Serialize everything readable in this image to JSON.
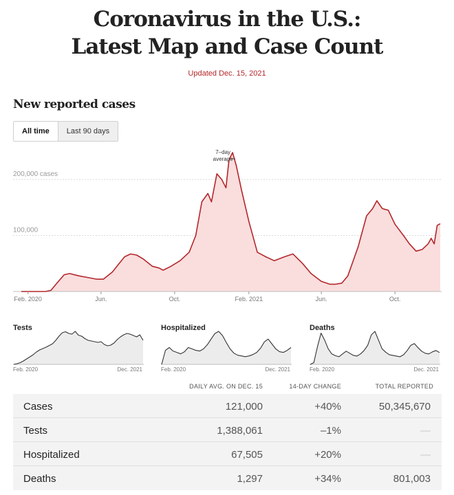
{
  "header": {
    "title_line1": "Coronavirus in the U.S.:",
    "title_line2": "Latest Map and Case Count",
    "updated": "Updated Dec. 15, 2021"
  },
  "section": {
    "title": "New reported cases"
  },
  "toggle": {
    "all_time": "All time",
    "last_90": "Last 90 days",
    "active": "all_time"
  },
  "colors": {
    "accent": "#b3262b",
    "area_fill": "#f9dedd",
    "line": "#b3262b",
    "small_fill": "#ececec",
    "small_line": "#333333"
  },
  "chart_data": [
    {
      "type": "area",
      "title": "New reported cases",
      "series_label": "7-day average",
      "ytick_labels": [
        "200,000 cases",
        "100,000"
      ],
      "yticks": [
        200000,
        100000
      ],
      "ylim": [
        0,
        260000
      ],
      "xtick_labels": [
        "Feb. 2020",
        "Jun.",
        "Oct.",
        "Feb. 2021",
        "Jun.",
        "Oct."
      ],
      "xticks": [
        "2020-02-01",
        "2020-06-01",
        "2020-10-01",
        "2021-02-01",
        "2021-06-01",
        "2021-10-01"
      ],
      "x_range": [
        "2020-01-21",
        "2021-12-15"
      ],
      "grid": true,
      "annotation": "7–day average",
      "x": [
        "2020-01-21",
        "2020-03-01",
        "2020-03-10",
        "2020-03-20",
        "2020-04-01",
        "2020-04-10",
        "2020-04-25",
        "2020-05-10",
        "2020-05-25",
        "2020-06-05",
        "2020-06-20",
        "2020-07-01",
        "2020-07-10",
        "2020-07-20",
        "2020-07-30",
        "2020-08-10",
        "2020-08-25",
        "2020-09-05",
        "2020-09-12",
        "2020-09-25",
        "2020-10-10",
        "2020-10-25",
        "2020-11-05",
        "2020-11-15",
        "2020-11-25",
        "2020-12-01",
        "2020-12-10",
        "2020-12-18",
        "2020-12-25",
        "2020-12-30",
        "2021-01-05",
        "2021-01-11",
        "2021-01-20",
        "2021-02-01",
        "2021-02-15",
        "2021-03-01",
        "2021-03-15",
        "2021-04-01",
        "2021-04-15",
        "2021-05-01",
        "2021-05-15",
        "2021-06-01",
        "2021-06-15",
        "2021-06-25",
        "2021-07-05",
        "2021-07-15",
        "2021-08-01",
        "2021-08-15",
        "2021-08-25",
        "2021-09-01",
        "2021-09-10",
        "2021-09-20",
        "2021-10-01",
        "2021-10-15",
        "2021-10-25",
        "2021-11-05",
        "2021-11-15",
        "2021-11-25",
        "2021-11-30",
        "2021-12-05",
        "2021-12-10",
        "2021-12-15"
      ],
      "values": [
        0,
        0,
        2000,
        15000,
        30000,
        32000,
        28000,
        25000,
        22000,
        22000,
        35000,
        50000,
        62000,
        67000,
        65000,
        58000,
        45000,
        42000,
        38000,
        45000,
        55000,
        70000,
        100000,
        160000,
        175000,
        160000,
        210000,
        200000,
        185000,
        235000,
        248000,
        225000,
        180000,
        125000,
        70000,
        62000,
        55000,
        62000,
        67000,
        50000,
        32000,
        18000,
        13000,
        13000,
        15000,
        28000,
        80000,
        135000,
        148000,
        162000,
        148000,
        145000,
        120000,
        100000,
        85000,
        72000,
        75000,
        85000,
        95000,
        85000,
        118000,
        121000
      ]
    },
    {
      "type": "area",
      "title": "Tests",
      "xtick_labels": [
        "Feb. 2020",
        "Dec. 2021"
      ],
      "values": [
        0,
        2,
        5,
        10,
        16,
        22,
        28,
        36,
        42,
        46,
        50,
        55,
        60,
        70,
        82,
        92,
        95,
        90,
        88,
        96,
        85,
        82,
        75,
        70,
        68,
        66,
        64,
        66,
        58,
        54,
        56,
        62,
        72,
        80,
        86,
        90,
        88,
        84,
        80,
        86,
        70
      ]
    },
    {
      "type": "area",
      "title": "Hospitalized",
      "xtick_labels": [
        "Feb. 2020",
        "Dec. 2021"
      ],
      "values": [
        0,
        40,
        48,
        38,
        34,
        30,
        36,
        48,
        44,
        40,
        38,
        44,
        56,
        72,
        88,
        94,
        82,
        62,
        44,
        32,
        26,
        24,
        22,
        24,
        28,
        34,
        46,
        64,
        72,
        58,
        44,
        36,
        34,
        40,
        48
      ]
    },
    {
      "type": "area",
      "title": "Deaths",
      "xtick_labels": [
        "Feb. 2020",
        "Dec. 2021"
      ],
      "values": [
        0,
        5,
        50,
        90,
        70,
        45,
        30,
        25,
        22,
        30,
        38,
        32,
        26,
        24,
        30,
        40,
        55,
        85,
        95,
        70,
        45,
        35,
        28,
        26,
        24,
        22,
        28,
        40,
        55,
        60,
        48,
        38,
        32,
        30,
        36,
        40,
        34
      ]
    }
  ],
  "small_titles": {
    "tests": "Tests",
    "hospitalized": "Hospitalized",
    "deaths": "Deaths"
  },
  "table": {
    "headers": {
      "avg": "DAILY AVG. ON DEC. 15",
      "change": "14-DAY CHANGE",
      "total": "TOTAL REPORTED"
    },
    "rows": [
      {
        "label": "Cases",
        "avg": "121,000",
        "change": "+40%",
        "total": "50,345,670"
      },
      {
        "label": "Tests",
        "avg": "1,388,061",
        "change": "–1%",
        "total": "—"
      },
      {
        "label": "Hospitalized",
        "avg": "67,505",
        "change": "+20%",
        "total": "—"
      },
      {
        "label": "Deaths",
        "avg": "1,297",
        "change": "+34%",
        "total": "801,003"
      }
    ]
  }
}
